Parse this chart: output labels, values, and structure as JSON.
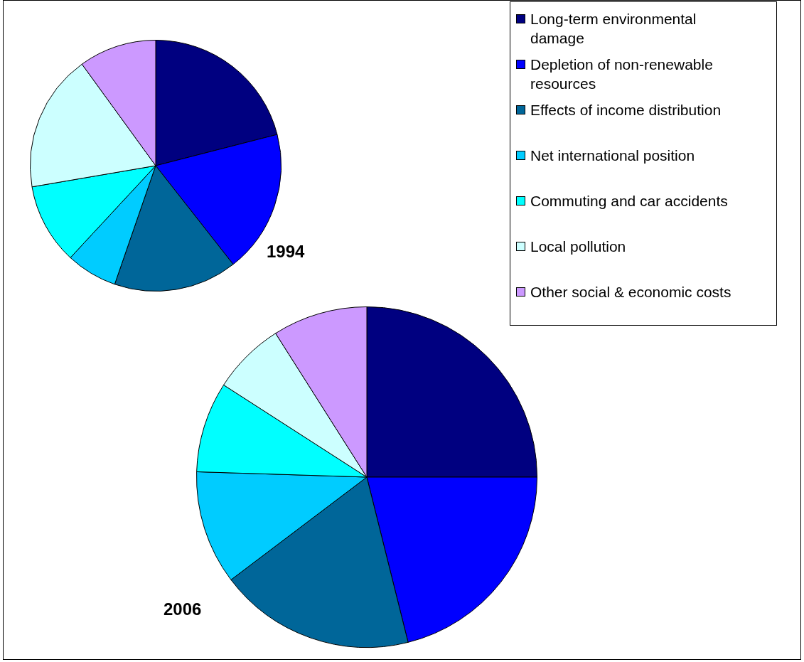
{
  "chart_data": [
    {
      "type": "pie",
      "title": "1994",
      "categories": [
        "Long-term environmental damage",
        "Depletion of non-renewable resources",
        "Effects of income distribution",
        "Net international position",
        "Commuting and car accidents",
        "Local pollution",
        "Other social & economic costs"
      ],
      "values": [
        21.0,
        18.4,
        15.9,
        6.6,
        10.4,
        17.7,
        10.0
      ],
      "colors": [
        "#000080",
        "#0000ff",
        "#006699",
        "#00ccff",
        "#00ffff",
        "#ccffff",
        "#cc99ff"
      ],
      "legend": "top right"
    },
    {
      "type": "pie",
      "title": "2006",
      "categories": [
        null,
        null,
        null,
        null,
        null,
        null,
        null
      ],
      "values": [
        25.0,
        21.1,
        18.6,
        10.8,
        8.6,
        6.9,
        9.0
      ],
      "colors": [
        "#000080",
        "#0000ff",
        "#006699",
        "#00ccff",
        "#00ffff",
        "#ccffff",
        "#cc99ff"
      ],
      "legend": false
    }
  ]
}
